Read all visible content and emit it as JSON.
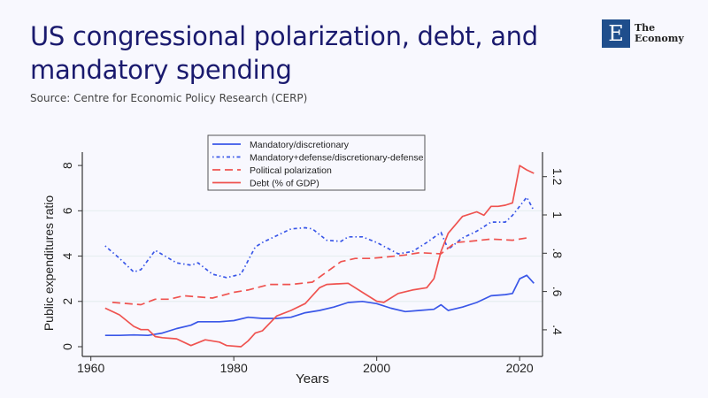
{
  "header": {
    "title": "US congressional polarization, debt, and mandatory spending",
    "source": "Source: Centre for Economic Policy Research (CERP)",
    "logo_text_1": "The",
    "logo_text_2": "Economy",
    "logo_letter": "E"
  },
  "chart_data": {
    "type": "line",
    "title": "",
    "xlabel": "Years",
    "ylabel": "Public expenditures ratio",
    "xlim": [
      1958.8,
      2023.2
    ],
    "ylim": [
      -0.43,
      8.59
    ],
    "ylim_right": [
      0.261,
      1.328
    ],
    "x_ticks": [
      1960,
      1980,
      2000,
      2020
    ],
    "x_tick_labels": [
      "1960",
      "1980",
      "2000",
      "2020"
    ],
    "y_ticks": [
      0,
      2,
      4,
      6,
      8
    ],
    "y_tick_labels": [
      "0",
      "2",
      "4",
      "6",
      "8"
    ],
    "y_right_ticks": [
      0.4,
      0.6,
      0.8,
      1.0,
      1.2
    ],
    "y_right_tick_labels": [
      ".4",
      ".6",
      ".8",
      "1",
      "1.2"
    ],
    "grid": true,
    "legend_placement": "top-center",
    "colors": {
      "blue": "#3a57e8",
      "red": "#ef5350",
      "axis": "#333333"
    },
    "series": [
      {
        "name": "Mandatory/discretionary",
        "axis": "left",
        "style": "solid",
        "color": "#3a57e8",
        "x": [
          1962,
          1964,
          1966,
          1968,
          1970,
          1972,
          1974,
          1975,
          1976,
          1978,
          1980,
          1982,
          1984,
          1986,
          1988,
          1990,
          1992,
          1994,
          1996,
          1998,
          2000,
          2002,
          2004,
          2006,
          2008,
          2009,
          2010,
          2012,
          2014,
          2016,
          2018,
          2019,
          2020,
          2021,
          2022
        ],
        "y": [
          0.5,
          0.5,
          0.52,
          0.5,
          0.6,
          0.8,
          0.95,
          1.1,
          1.1,
          1.1,
          1.15,
          1.3,
          1.25,
          1.25,
          1.3,
          1.5,
          1.6,
          1.75,
          1.95,
          2.0,
          1.9,
          1.7,
          1.55,
          1.6,
          1.65,
          1.85,
          1.6,
          1.75,
          1.95,
          2.25,
          2.3,
          2.35,
          3.0,
          3.15,
          2.8
        ]
      },
      {
        "name": "Mandatory+defense/discretionary-defense",
        "axis": "left",
        "style": "dotted",
        "color": "#3a57e8",
        "x": [
          1962,
          1964,
          1966,
          1967,
          1969,
          1972,
          1974,
          1975,
          1977,
          1979,
          1981,
          1983,
          1984,
          1986,
          1988,
          1990,
          1991,
          1993,
          1995,
          1996,
          1998,
          2000,
          2003,
          2005,
          2007,
          2009,
          2010,
          2012,
          2014,
          2016,
          2018,
          2019,
          2020,
          2021,
          2022
        ],
        "y": [
          4.45,
          3.9,
          3.3,
          3.4,
          4.25,
          3.7,
          3.6,
          3.7,
          3.2,
          3.05,
          3.2,
          4.4,
          4.6,
          4.9,
          5.2,
          5.25,
          5.2,
          4.7,
          4.65,
          4.85,
          4.85,
          4.6,
          4.1,
          4.2,
          4.6,
          5.05,
          4.3,
          4.8,
          5.1,
          5.5,
          5.5,
          5.8,
          6.2,
          6.6,
          6.0
        ]
      },
      {
        "name": "Political polarization",
        "axis": "right",
        "style": "dashed",
        "color": "#ef5350",
        "x": [
          1963,
          1967,
          1969,
          1971,
          1973,
          1977,
          1980,
          1982,
          1985,
          1988,
          1991,
          1993,
          1995,
          1997,
          1999,
          2001,
          2004,
          2006,
          2009,
          2011,
          2013,
          2016,
          2019,
          2021
        ],
        "y": [
          0.543,
          0.531,
          0.56,
          0.56,
          0.578,
          0.566,
          0.596,
          0.608,
          0.637,
          0.637,
          0.649,
          0.702,
          0.756,
          0.773,
          0.773,
          0.779,
          0.791,
          0.803,
          0.797,
          0.856,
          0.862,
          0.874,
          0.868,
          0.88
        ]
      },
      {
        "name": "Debt (% of GDP)",
        "axis": "right",
        "style": "solid",
        "color": "#ef5350",
        "x": [
          1962,
          1964,
          1966,
          1967,
          1968,
          1969,
          1970,
          1972,
          1974,
          1976,
          1978,
          1979,
          1981,
          1982,
          1983,
          1984,
          1986,
          1988,
          1990,
          1992,
          1993,
          1996,
          1998,
          2000,
          2001,
          2003,
          2005,
          2007,
          2008,
          2009,
          2010,
          2012,
          2014,
          2015,
          2016,
          2017,
          2018,
          2019,
          2020,
          2021,
          2022
        ],
        "y": [
          0.513,
          0.478,
          0.418,
          0.401,
          0.401,
          0.365,
          0.359,
          0.353,
          0.318,
          0.348,
          0.336,
          0.318,
          0.312,
          0.342,
          0.383,
          0.395,
          0.472,
          0.501,
          0.537,
          0.62,
          0.637,
          0.643,
          0.596,
          0.549,
          0.543,
          0.59,
          0.608,
          0.62,
          0.667,
          0.809,
          0.904,
          0.992,
          1.016,
          0.998,
          1.045,
          1.045,
          1.051,
          1.063,
          1.258,
          1.235,
          1.217
        ]
      }
    ]
  }
}
